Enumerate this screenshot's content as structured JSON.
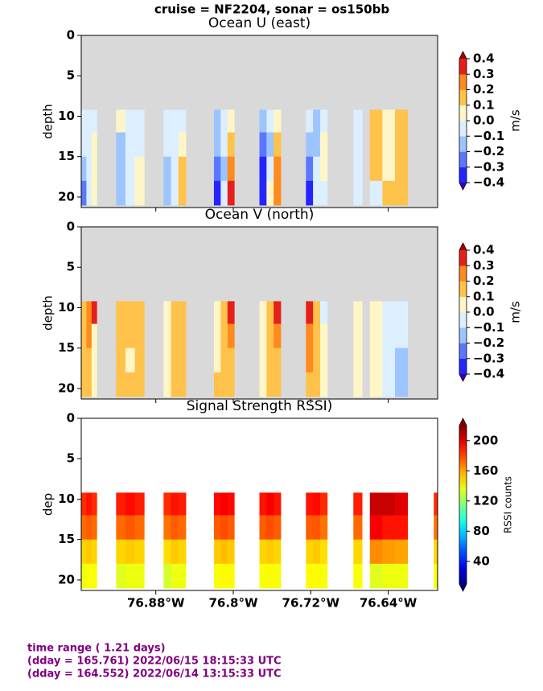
{
  "suptitle": "cruise = NF2204,  sonar = os150bb",
  "footer": [
    "time range ( 1.21 days)",
    "(dday = 165.761) 2022/06/15 18:15:33 UTC",
    "(dday = 164.552) 2022/06/14 13:15:33 UTC"
  ],
  "chart_data": [
    {
      "type": "contour",
      "title": "Ocean U (east)",
      "ylabel": "depth",
      "y_inverted": true,
      "ylim": [
        0,
        21.3
      ],
      "yticks": [
        0,
        5,
        10,
        15,
        20
      ],
      "xlim": [
        -76.957,
        -76.589
      ],
      "background": "#d9d9d9",
      "depth_edges": [
        9.2,
        12,
        15,
        18,
        21
      ],
      "segments": [
        {
          "lon": [
            -76.957,
            -76.941
          ],
          "values": [
            [
              -0.05,
              -0.05,
              -0.05
            ],
            [
              -0.05,
              -0.05,
              0.05
            ],
            [
              -0.15,
              -0.05,
              0.05
            ],
            [
              -0.25,
              -0.05,
              0.05
            ]
          ]
        },
        {
          "lon": [
            -76.921,
            -76.892
          ],
          "values": [
            [
              0.05,
              -0.05,
              -0.05
            ],
            [
              -0.15,
              -0.05,
              -0.05
            ],
            [
              -0.15,
              -0.05,
              0.05
            ],
            [
              -0.15,
              -0.05,
              0.05
            ]
          ]
        },
        {
          "lon": [
            -76.872,
            -76.849
          ],
          "values": [
            [
              -0.05,
              -0.05,
              -0.05
            ],
            [
              -0.05,
              -0.05,
              0.05
            ],
            [
              -0.15,
              -0.05,
              0.15
            ],
            [
              -0.15,
              -0.05,
              0.15
            ]
          ]
        },
        {
          "lon": [
            -76.82,
            -76.799
          ],
          "values": [
            [
              -0.15,
              -0.05,
              0.05
            ],
            [
              -0.15,
              -0.05,
              0.15
            ],
            [
              -0.25,
              -0.15,
              0.25
            ],
            [
              -0.35,
              -0.05,
              0.35
            ]
          ]
        },
        {
          "lon": [
            -76.773,
            -76.751
          ],
          "values": [
            [
              -0.15,
              -0.05,
              0.05
            ],
            [
              -0.25,
              -0.15,
              0.15
            ],
            [
              -0.35,
              -0.05,
              0.25
            ],
            [
              -0.35,
              0.05,
              0.25
            ]
          ]
        },
        {
          "lon": [
            -76.725,
            -76.703
          ],
          "values": [
            [
              -0.05,
              -0.15,
              -0.05
            ],
            [
              -0.15,
              -0.15,
              0.05
            ],
            [
              -0.25,
              -0.05,
              0.05
            ],
            [
              -0.35,
              -0.05,
              -0.05
            ]
          ]
        },
        {
          "lon": [
            -76.676,
            -76.667
          ],
          "values": [
            [
              -0.05,
              -0.05,
              -0.05
            ],
            [
              -0.05,
              -0.05,
              -0.05
            ],
            [
              -0.05,
              -0.05,
              -0.05
            ],
            [
              -0.05,
              -0.05,
              -0.05
            ]
          ]
        },
        {
          "lon": [
            -76.659,
            -76.62
          ],
          "values": [
            [
              0.15,
              0.05,
              0.15
            ],
            [
              0.15,
              0.05,
              0.15
            ],
            [
              0.15,
              0.05,
              0.15
            ],
            [
              -0.05,
              0.15,
              0.15
            ]
          ]
        }
      ],
      "colorbar": {
        "label": "m/s",
        "ticks": [
          {
            "value": -0.4,
            "label": "−0.4"
          },
          {
            "value": -0.3,
            "label": "−0.3"
          },
          {
            "value": -0.2,
            "label": "−0.2"
          },
          {
            "value": -0.1,
            "label": "−0.1"
          },
          {
            "value": 0,
            "label": "0.0"
          },
          0.1,
          0.2,
          0.3,
          0.4
        ],
        "colors": [
          "#2424ff",
          "#5a78ff",
          "#9cc4ff",
          "#dcefff",
          "#fff6c8",
          "#ffc24a",
          "#ff8a1e",
          "#e5201a"
        ],
        "extend_colors": [
          "#3a00b0",
          "#a00000"
        ]
      }
    },
    {
      "type": "contour",
      "title": "Ocean V (north)",
      "ylabel": "depth",
      "y_inverted": true,
      "ylim": [
        0,
        21.3
      ],
      "yticks": [
        0,
        5,
        10,
        15,
        20
      ],
      "xlim": [
        -76.957,
        -76.589
      ],
      "background": "#d9d9d9",
      "depth_edges": [
        9.2,
        12,
        15,
        18,
        21
      ],
      "segments": [
        {
          "lon": [
            -76.957,
            -76.941
          ],
          "values": [
            [
              0.15,
              0.25,
              0.35
            ],
            [
              0.15,
              0.25,
              0.05
            ],
            [
              0.15,
              0.15,
              0.05
            ],
            [
              0.15,
              0.15,
              0.05
            ]
          ]
        },
        {
          "lon": [
            -76.921,
            -76.892
          ],
          "values": [
            [
              0.15,
              0.15,
              0.15
            ],
            [
              0.15,
              0.15,
              0.15
            ],
            [
              0.15,
              0.05,
              0.15
            ],
            [
              0.15,
              0.15,
              0.15
            ]
          ]
        },
        {
          "lon": [
            -76.872,
            -76.849
          ],
          "values": [
            [
              0.05,
              0.15,
              0.15
            ],
            [
              0.05,
              0.15,
              0.15
            ],
            [
              0.05,
              0.15,
              0.15
            ],
            [
              0.05,
              0.15,
              0.15
            ]
          ]
        },
        {
          "lon": [
            -76.82,
            -76.799
          ],
          "values": [
            [
              0.05,
              0.15,
              0.35
            ],
            [
              0.05,
              0.15,
              0.25
            ],
            [
              0.05,
              0.15,
              0.15
            ],
            [
              0.15,
              0.15,
              0.15
            ]
          ]
        },
        {
          "lon": [
            -76.773,
            -76.751
          ],
          "values": [
            [
              0.05,
              0.15,
              0.35
            ],
            [
              0.05,
              0.15,
              0.25
            ],
            [
              0.05,
              0.15,
              0.15
            ],
            [
              0.05,
              0.15,
              0.15
            ]
          ]
        },
        {
          "lon": [
            -76.725,
            -76.703
          ],
          "values": [
            [
              0.35,
              0.15,
              -0.05
            ],
            [
              0.25,
              0.15,
              0.05
            ],
            [
              0.25,
              0.15,
              0.05
            ],
            [
              0.15,
              0.15,
              0.05
            ]
          ]
        },
        {
          "lon": [
            -76.676,
            -76.667
          ],
          "values": [
            [
              0.05,
              0.05,
              0.05
            ],
            [
              0.05,
              0.05,
              0.05
            ],
            [
              0.05,
              0.05,
              0.05
            ],
            [
              0.05,
              0.05,
              0.05
            ]
          ]
        },
        {
          "lon": [
            -76.659,
            -76.62
          ],
          "values": [
            [
              0.05,
              -0.05,
              -0.05
            ],
            [
              0.05,
              -0.05,
              -0.05
            ],
            [
              0.05,
              -0.05,
              -0.15
            ],
            [
              0.05,
              -0.05,
              -0.15
            ]
          ]
        }
      ],
      "colorbar": {
        "label": "m/s",
        "ticks": [
          {
            "value": -0.4,
            "label": "−0.4"
          },
          {
            "value": -0.3,
            "label": "−0.3"
          },
          {
            "value": -0.2,
            "label": "−0.2"
          },
          {
            "value": -0.1,
            "label": "−0.1"
          },
          {
            "value": 0,
            "label": "0.0"
          },
          0.1,
          0.2,
          0.3,
          0.4
        ],
        "colors": [
          "#2424ff",
          "#5a78ff",
          "#9cc4ff",
          "#dcefff",
          "#fff6c8",
          "#ffc24a",
          "#ff8a1e",
          "#e5201a"
        ],
        "extend_colors": [
          "#3a00b0",
          "#a00000"
        ]
      }
    },
    {
      "type": "pcolor",
      "title": "Signal Strength RSSI)",
      "ylabel": "dep",
      "y_inverted": true,
      "ylim": [
        0,
        21.3
      ],
      "yticks": [
        0,
        5,
        10,
        15,
        20
      ],
      "xlim": [
        -76.957,
        -76.589
      ],
      "background": "#ffffff",
      "xticks": [
        {
          "value": -76.88,
          "label": "76.88°W"
        },
        {
          "value": -76.8,
          "label": "76.8°W"
        },
        {
          "value": -76.72,
          "label": "76.72°W"
        },
        {
          "value": -76.64,
          "label": "76.64°W"
        }
      ],
      "depth_edges": [
        9.2,
        12,
        15,
        18,
        21
      ],
      "segments": [
        {
          "lon": [
            -76.957,
            -76.941
          ],
          "values": [
            [
              185,
              190,
              185
            ],
            [
              172,
              175,
              172
            ],
            [
              150,
              152,
              150
            ],
            [
              138,
              140,
              140
            ]
          ]
        },
        {
          "lon": [
            -76.921,
            -76.892
          ],
          "values": [
            [
              188,
              192,
              188
            ],
            [
              172,
              176,
              172
            ],
            [
              150,
              152,
              150
            ],
            [
              135,
              138,
              138
            ]
          ]
        },
        {
          "lon": [
            -76.872,
            -76.849
          ],
          "values": [
            [
              185,
              190,
              188
            ],
            [
              170,
              175,
              172
            ],
            [
              148,
              152,
              150
            ],
            [
              132,
              138,
              138
            ]
          ]
        },
        {
          "lon": [
            -76.82,
            -76.799
          ],
          "values": [
            [
              192,
              195,
              192
            ],
            [
              175,
              178,
              175
            ],
            [
              152,
              155,
              152
            ],
            [
              140,
              142,
              142
            ]
          ]
        },
        {
          "lon": [
            -76.773,
            -76.751
          ],
          "values": [
            [
              190,
              195,
              190
            ],
            [
              175,
              178,
              175
            ],
            [
              150,
              152,
              150
            ],
            [
              140,
              142,
              140
            ]
          ]
        },
        {
          "lon": [
            -76.725,
            -76.703
          ],
          "values": [
            [
              190,
              192,
              185
            ],
            [
              175,
              176,
              170
            ],
            [
              150,
              152,
              148
            ],
            [
              142,
              142,
              140
            ]
          ]
        },
        {
          "lon": [
            -76.676,
            -76.667
          ],
          "values": [
            [
              188,
              188,
              188
            ],
            [
              172,
              172,
              172
            ],
            [
              150,
              150,
              150
            ],
            [
              140,
              140,
              140
            ]
          ]
        },
        {
          "lon": [
            -76.659,
            -76.62
          ],
          "values": [
            [
              205,
              205,
              200
            ],
            [
              195,
              190,
              190
            ],
            [
              165,
              162,
              160
            ],
            [
              135,
              138,
              138
            ]
          ]
        },
        {
          "lon": [
            -76.593,
            -76.589
          ],
          "values": [
            [
              185,
              185,
              185
            ],
            [
              170,
              170,
              170
            ],
            [
              150,
              150,
              150
            ],
            [
              140,
              140,
              140
            ]
          ]
        }
      ],
      "colorbar": {
        "label": "RSSI counts",
        "ticks": [
          40,
          80,
          120,
          160,
          200
        ],
        "clim": [
          10,
          220
        ],
        "colormap": "jet"
      }
    }
  ]
}
